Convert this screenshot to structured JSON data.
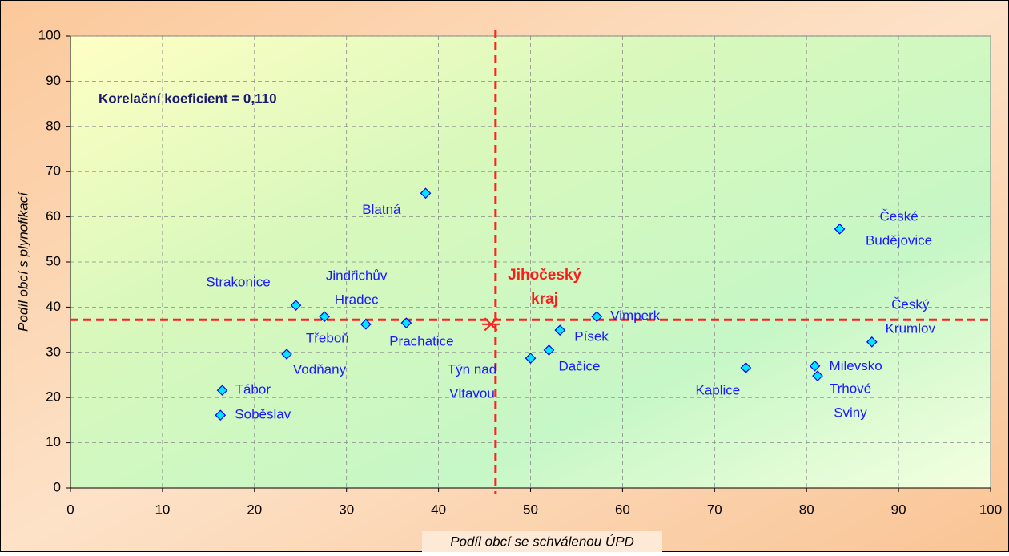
{
  "chart_data": {
    "type": "scatter",
    "xlabel": "Podíl obcí se schválenou ÚPD",
    "ylabel": "Podíl obcí s plynofikací",
    "annotation": "Korelační koeficient = 0,110",
    "xlim": [
      0,
      100
    ],
    "ylim": [
      0,
      100
    ],
    "xticks": [
      0,
      10,
      20,
      30,
      40,
      50,
      60,
      70,
      80,
      90,
      100
    ],
    "yticks": [
      0,
      10,
      20,
      30,
      40,
      50,
      60,
      70,
      80,
      90,
      100
    ],
    "grid": true,
    "series": [
      {
        "color": "#00e8ff",
        "edge": "#0000ff",
        "label_color": "#1a1aff",
        "marker": "diamond",
        "labels": [
          [
            "Blatná"
          ],
          [
            "České",
            "Budějovice"
          ],
          [
            "Strakonice"
          ],
          [
            "Jindřichův",
            "Hradec"
          ],
          [
            "Třeboň"
          ],
          [
            "Prachatice"
          ],
          [
            "Vodňany"
          ],
          [
            "Tábor"
          ],
          [
            "Soběslav"
          ],
          [
            "Týn nad",
            "Vltavou"
          ],
          [
            "Dačice"
          ],
          [
            "Písek"
          ],
          [
            "Vimperk"
          ],
          [
            "Kaplice"
          ],
          [
            "Milevsko"
          ],
          [
            "Trhové",
            "Sviny"
          ],
          [
            "Český",
            "Krumlov"
          ]
        ],
        "x": [
          38.6,
          83.6,
          24.5,
          27.6,
          32.1,
          36.5,
          23.5,
          16.5,
          16.3,
          50.0,
          52.0,
          53.2,
          57.2,
          73.4,
          80.9,
          81.2,
          87.1
        ],
        "values": [
          65.2,
          57.3,
          40.4,
          37.9,
          36.2,
          36.5,
          29.6,
          21.6,
          16.1,
          28.7,
          30.5,
          34.9,
          37.9,
          26.6,
          27.0,
          24.8,
          32.3
        ]
      },
      {
        "color": "#ff2020",
        "edge": "#ff2020",
        "label_color": "#ff1a1a",
        "marker": "star",
        "labels": [
          [
            "Jihočeský",
            "kraj"
          ]
        ],
        "x": [
          45.7
        ],
        "values": [
          36.2
        ]
      }
    ],
    "ref_x": 46.2,
    "ref_y": 37.2,
    "ref_color": "#ff2020"
  }
}
